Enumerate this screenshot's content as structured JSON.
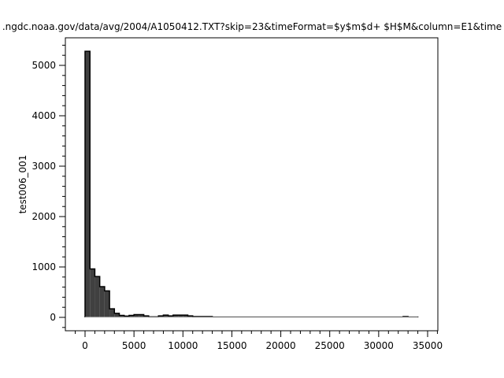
{
  "chart_data": {
    "type": "bar",
    "title": ".ngdc.noaa.gov/data/avg/2004/A1050412.TXT?skip=23&timeFormat=$y$m$d+ $H$M&column=E1&time",
    "xlabel": "",
    "ylabel": "test006_001",
    "bin_width": 500,
    "x_start": 0,
    "values": [
      5280,
      960,
      810,
      610,
      525,
      170,
      80,
      40,
      25,
      40,
      55,
      55,
      30,
      10,
      10,
      30,
      45,
      30,
      45,
      45,
      45,
      30,
      15,
      15,
      15,
      15,
      5,
      5,
      5,
      5,
      5,
      5,
      5,
      5,
      5,
      5,
      5,
      5,
      5,
      5,
      5,
      5,
      5,
      5,
      5,
      5,
      5,
      5,
      5,
      5,
      5,
      5,
      5,
      5,
      5,
      5,
      5,
      5,
      5,
      5,
      5,
      5,
      5,
      5,
      5,
      15,
      5,
      5
    ],
    "xlim": [
      -2000,
      36000
    ],
    "ylim": [
      -250,
      5550
    ],
    "xticks": [
      0,
      5000,
      10000,
      15000,
      20000,
      25000,
      30000,
      35000
    ],
    "yticks": [
      0,
      1000,
      2000,
      3000,
      4000,
      5000
    ],
    "bar_color": "#404040",
    "grid": false
  }
}
